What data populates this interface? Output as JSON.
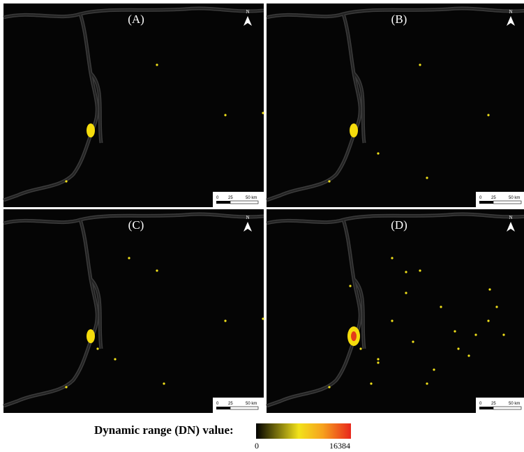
{
  "panels": [
    {
      "label": "(A)",
      "north": "N",
      "scale_labels": [
        "0",
        "25",
        "50 km"
      ]
    },
    {
      "label": "(B)",
      "north": "N",
      "scale_labels": [
        "0",
        "25",
        "50 km"
      ]
    },
    {
      "label": "(C)",
      "north": "N",
      "scale_labels": [
        "0",
        "25",
        "50 km"
      ]
    },
    {
      "label": "(D)",
      "north": "N",
      "scale_labels": [
        "0",
        "25",
        "50 km"
      ]
    }
  ],
  "legend": {
    "title": "Dynamic range (DN) value:",
    "min_label": "0",
    "max_label": "16384"
  }
}
